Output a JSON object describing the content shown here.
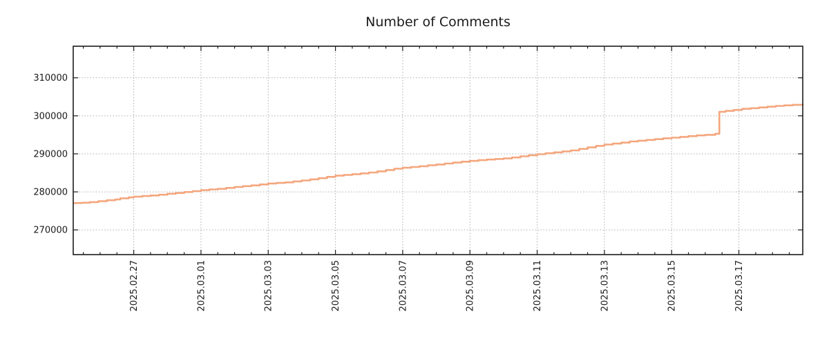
{
  "chart_data": {
    "type": "line",
    "title": "Number of Comments",
    "xlabel": "",
    "ylabel": "",
    "grid": "dotted",
    "legend": "none",
    "line_color": "#f4a67d",
    "grid_color": "#ababab",
    "axis_color": "#1a1a1a",
    "xlim_days": [
      0.2,
      21.9
    ],
    "ylim": [
      263500,
      318300
    ],
    "x_major_ticks": [
      {
        "pos": 2,
        "label": "2025.02.27"
      },
      {
        "pos": 4,
        "label": "2025.03.01"
      },
      {
        "pos": 6,
        "label": "2025.03.03"
      },
      {
        "pos": 8,
        "label": "2025.03.05"
      },
      {
        "pos": 10,
        "label": "2025.03.07"
      },
      {
        "pos": 12,
        "label": "2025.03.09"
      },
      {
        "pos": 14,
        "label": "2025.03.11"
      },
      {
        "pos": 16,
        "label": "2025.03.13"
      },
      {
        "pos": 18,
        "label": "2025.03.15"
      },
      {
        "pos": 20,
        "label": "2025.03.17"
      }
    ],
    "x_minor_tick_step": 0.5,
    "y_major_ticks": [
      {
        "pos": 270000,
        "label": "270000"
      },
      {
        "pos": 280000,
        "label": "280000"
      },
      {
        "pos": 290000,
        "label": "290000"
      },
      {
        "pos": 300000,
        "label": "300000"
      },
      {
        "pos": 310000,
        "label": "310000"
      }
    ],
    "series": [
      {
        "name": "comments",
        "step_style": "post",
        "points": [
          [
            0.2,
            277050
          ],
          [
            0.45,
            277150
          ],
          [
            0.7,
            277300
          ],
          [
            0.95,
            277550
          ],
          [
            1.2,
            277800
          ],
          [
            1.45,
            278000
          ],
          [
            1.6,
            278300
          ],
          [
            1.85,
            278550
          ],
          [
            2.0,
            278750
          ],
          [
            2.25,
            278900
          ],
          [
            2.5,
            279050
          ],
          [
            2.75,
            279250
          ],
          [
            3.0,
            279500
          ],
          [
            3.25,
            279700
          ],
          [
            3.5,
            279950
          ],
          [
            3.75,
            280200
          ],
          [
            4.0,
            280450
          ],
          [
            4.25,
            280650
          ],
          [
            4.5,
            280800
          ],
          [
            4.75,
            281050
          ],
          [
            5.0,
            281300
          ],
          [
            5.25,
            281500
          ],
          [
            5.5,
            281700
          ],
          [
            5.75,
            281950
          ],
          [
            6.0,
            282200
          ],
          [
            6.25,
            282350
          ],
          [
            6.5,
            282500
          ],
          [
            6.75,
            282750
          ],
          [
            7.0,
            283000
          ],
          [
            7.25,
            283300
          ],
          [
            7.5,
            283600
          ],
          [
            7.75,
            283950
          ],
          [
            8.0,
            284250
          ],
          [
            8.25,
            284450
          ],
          [
            8.5,
            284650
          ],
          [
            8.75,
            284850
          ],
          [
            9.0,
            285100
          ],
          [
            9.25,
            285400
          ],
          [
            9.5,
            285750
          ],
          [
            9.75,
            286100
          ],
          [
            10.0,
            286350
          ],
          [
            10.25,
            286550
          ],
          [
            10.5,
            286750
          ],
          [
            10.75,
            287000
          ],
          [
            11.0,
            287200
          ],
          [
            11.25,
            287450
          ],
          [
            11.5,
            287700
          ],
          [
            11.75,
            287950
          ],
          [
            12.0,
            288150
          ],
          [
            12.25,
            288350
          ],
          [
            12.5,
            288500
          ],
          [
            12.75,
            288650
          ],
          [
            13.0,
            288800
          ],
          [
            13.25,
            289050
          ],
          [
            13.5,
            289350
          ],
          [
            13.75,
            289650
          ],
          [
            14.0,
            289900
          ],
          [
            14.25,
            290150
          ],
          [
            14.5,
            290400
          ],
          [
            14.75,
            290650
          ],
          [
            15.0,
            290900
          ],
          [
            15.25,
            291300
          ],
          [
            15.5,
            291700
          ],
          [
            15.75,
            292100
          ],
          [
            16.0,
            292450
          ],
          [
            16.25,
            292700
          ],
          [
            16.5,
            292950
          ],
          [
            16.75,
            293250
          ],
          [
            17.0,
            293450
          ],
          [
            17.25,
            293650
          ],
          [
            17.5,
            293850
          ],
          [
            17.75,
            294100
          ],
          [
            18.0,
            294250
          ],
          [
            18.25,
            294450
          ],
          [
            18.5,
            294650
          ],
          [
            18.75,
            294850
          ],
          [
            19.0,
            295000
          ],
          [
            19.3,
            295300
          ],
          [
            19.42,
            301050
          ],
          [
            19.6,
            301300
          ],
          [
            19.85,
            301550
          ],
          [
            20.1,
            301850
          ],
          [
            20.35,
            302000
          ],
          [
            20.6,
            302200
          ],
          [
            20.85,
            302400
          ],
          [
            21.1,
            302600
          ],
          [
            21.35,
            302750
          ],
          [
            21.6,
            302900
          ],
          [
            21.9,
            303050
          ]
        ]
      }
    ]
  }
}
